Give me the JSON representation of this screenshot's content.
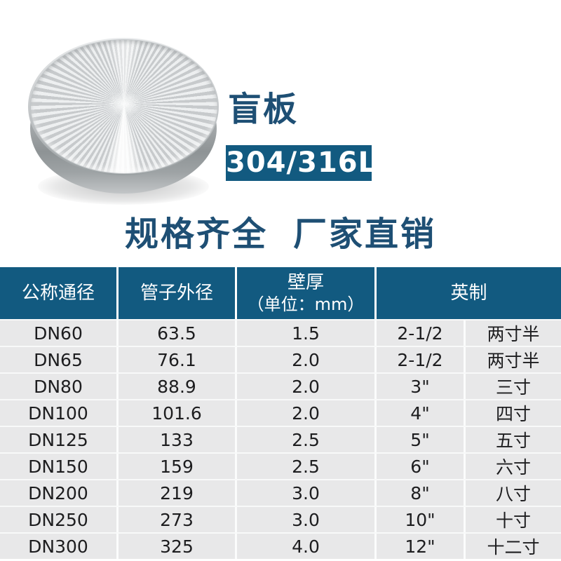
{
  "header": {
    "title": "盲板",
    "material_badge": "304/316L",
    "tagline_left": "规格齐全",
    "tagline_right": "厂家直销"
  },
  "colors": {
    "accent_blue": "#125a80",
    "heading_blue": "#1e4f74",
    "row_gray": "#e8e8e9"
  },
  "table": {
    "columns": [
      {
        "label": "公称通径"
      },
      {
        "label": "管子外径"
      },
      {
        "label": "壁厚",
        "sublabel": "（单位：mm）"
      },
      {
        "label": "英制"
      }
    ],
    "rows": [
      [
        "DN60",
        "63.5",
        "1.5",
        "2-1/2",
        "两寸半"
      ],
      [
        "DN65",
        "76.1",
        "2.0",
        "2-1/2",
        "两寸半"
      ],
      [
        "DN80",
        "88.9",
        "2.0",
        "3\"",
        "三寸"
      ],
      [
        "DN100",
        "101.6",
        "2.0",
        "4\"",
        "四寸"
      ],
      [
        "DN125",
        "133",
        "2.5",
        "5\"",
        "五寸"
      ],
      [
        "DN150",
        "159",
        "2.5",
        "6\"",
        "六寸"
      ],
      [
        "DN200",
        "219",
        "3.0",
        "8\"",
        "八寸"
      ],
      [
        "DN250",
        "273",
        "3.0",
        "10\"",
        "十寸"
      ],
      [
        "DN300",
        "325",
        "4.0",
        "12\"",
        "十二寸"
      ]
    ]
  }
}
